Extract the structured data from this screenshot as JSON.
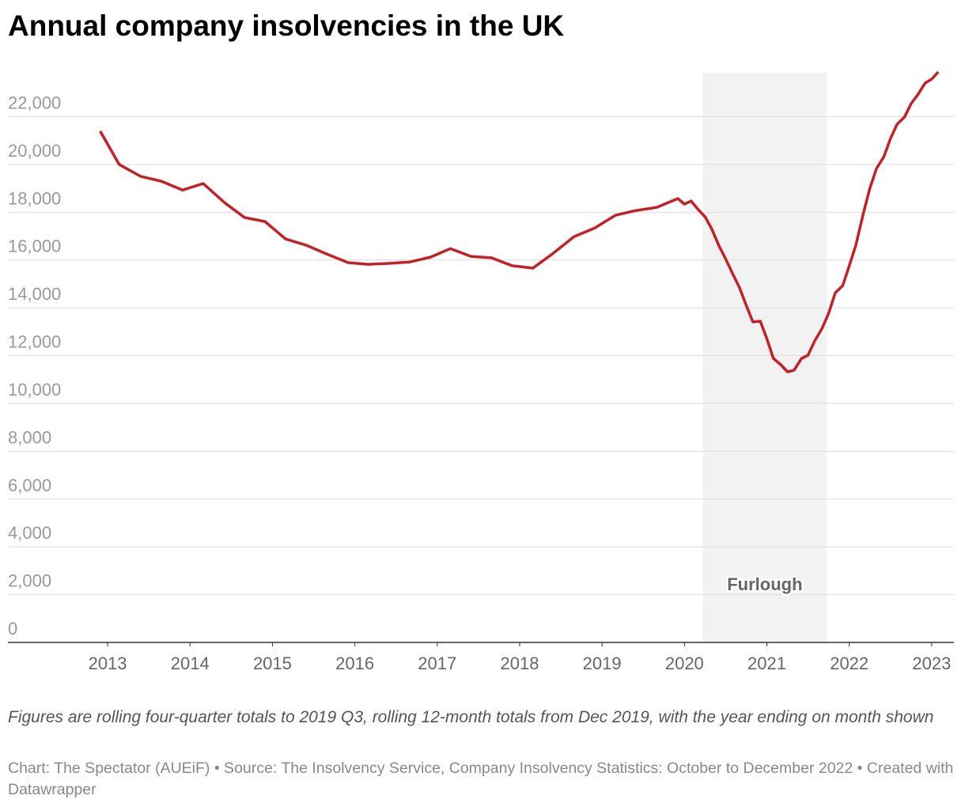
{
  "chart_data": {
    "type": "line",
    "title": "Annual company insolvencies in the UK",
    "note": "Figures are rolling four-quarter totals to 2019 Q3, rolling 12-month totals from Dec 2019, with the year ending on month shown",
    "source": "Chart: The Spectator (AUEiF) • Source: The Insolvency Service, Company Insolvency Statistics: October to December 2022 • Created with Datawrapper",
    "color": "#c42126",
    "x": [
      2012.91,
      2013.14,
      2013.4,
      2013.65,
      2013.91,
      2014.16,
      2014.42,
      2014.66,
      2014.91,
      2015.16,
      2015.41,
      2015.66,
      2015.92,
      2016.16,
      2016.42,
      2016.67,
      2016.92,
      2017.16,
      2017.41,
      2017.66,
      2017.91,
      2018.16,
      2018.41,
      2018.66,
      2018.91,
      2019.16,
      2019.41,
      2019.66,
      2019.92,
      2020.0,
      2020.08,
      2020.17,
      2020.25,
      2020.33,
      2020.42,
      2020.5,
      2020.58,
      2020.67,
      2020.75,
      2020.83,
      2020.92,
      2021.0,
      2021.08,
      2021.17,
      2021.25,
      2021.33,
      2021.42,
      2021.5,
      2021.58,
      2021.67,
      2021.75,
      2021.83,
      2021.92,
      2022.0,
      2022.08,
      2022.17,
      2022.25,
      2022.33,
      2022.42,
      2022.5,
      2022.58,
      2022.67,
      2022.75,
      2022.83,
      2022.92,
      2023.0,
      2023.08
    ],
    "values": [
      21390,
      20000,
      19500,
      19300,
      18930,
      19200,
      18400,
      17780,
      17610,
      16880,
      16620,
      16250,
      15890,
      15820,
      15860,
      15920,
      16120,
      16480,
      16150,
      16090,
      15760,
      15660,
      16290,
      16980,
      17340,
      17870,
      18070,
      18200,
      18570,
      18340,
      18470,
      18100,
      17810,
      17310,
      16580,
      16050,
      15460,
      14830,
      14100,
      13410,
      13440,
      12710,
      11880,
      11620,
      11320,
      11390,
      11880,
      12020,
      12610,
      13140,
      13770,
      14630,
      14930,
      15760,
      16620,
      17940,
      19000,
      19830,
      20320,
      21080,
      21680,
      21980,
      22540,
      22910,
      23400,
      23570,
      23870
    ],
    "xlim": [
      2011.79,
      2023.27
    ],
    "xticks": [
      2013,
      2014,
      2015,
      2016,
      2017,
      2018,
      2019,
      2020,
      2021,
      2022,
      2023
    ],
    "ylim": [
      0,
      24000
    ],
    "yticks": [
      0,
      {
        "value": 2000,
        "label": "2,000"
      },
      {
        "value": 4000,
        "label": "4,000"
      },
      {
        "value": 6000,
        "label": "6,000"
      },
      {
        "value": 8000,
        "label": "8,000"
      },
      {
        "value": 10000,
        "label": "10,000"
      },
      {
        "value": 12000,
        "label": "12,000"
      },
      {
        "value": 14000,
        "label": "14,000"
      },
      {
        "value": 16000,
        "label": "16,000"
      },
      {
        "value": 18000,
        "label": "18,000"
      },
      {
        "value": 20000,
        "label": "20,000"
      },
      {
        "value": 22000,
        "label": "22,000"
      }
    ],
    "grid": true,
    "shaded_region": {
      "xlim": [
        2020.22,
        2021.73
      ],
      "label": "Furlough",
      "color": "#f2f2f2"
    }
  }
}
